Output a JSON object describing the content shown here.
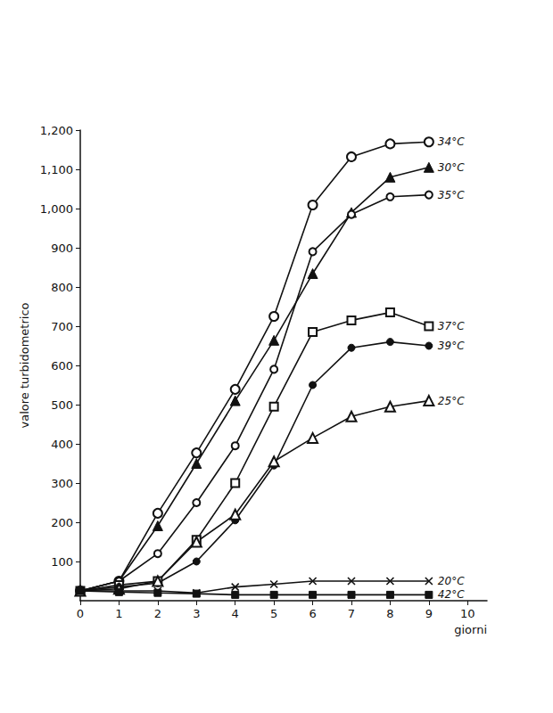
{
  "chart_data": {
    "type": "line",
    "x_label": "giorni",
    "y_label": "valore turbidometrico",
    "xlim": [
      0,
      10.5
    ],
    "xticks": [
      0,
      1,
      2,
      3,
      4,
      5,
      6,
      7,
      8,
      9,
      10
    ],
    "ylim": [
      0,
      1200
    ],
    "yticks": [
      100,
      200,
      300,
      400,
      500,
      600,
      700,
      800,
      900,
      1000,
      1100,
      1200
    ],
    "grid": false,
    "x": [
      0,
      1,
      2,
      3,
      4,
      5,
      6,
      7,
      8,
      9
    ],
    "series": [
      {
        "name": "34°C",
        "color": "#111111",
        "marker": "double_circle",
        "values": [
          25,
          50,
          223,
          377,
          539,
          725,
          1009,
          1132,
          1165,
          1170
        ]
      },
      {
        "name": "30°C",
        "color": "#111111",
        "marker": "filled_triangle",
        "values": [
          25,
          50,
          191,
          350,
          510,
          664,
          834,
          990,
          1080,
          1105
        ]
      },
      {
        "name": "35°C",
        "color": "#111111",
        "marker": "open_circle",
        "values": [
          25,
          50,
          120,
          250,
          395,
          590,
          890,
          985,
          1030,
          1035
        ]
      },
      {
        "name": "37°C",
        "color": "#111111",
        "marker": "dotted_square",
        "values": [
          25,
          40,
          50,
          155,
          300,
          495,
          685,
          715,
          735,
          700
        ]
      },
      {
        "name": "39°C",
        "color": "#111111",
        "marker": "filled_circle",
        "values": [
          25,
          35,
          45,
          100,
          205,
          345,
          550,
          645,
          660,
          650
        ]
      },
      {
        "name": "25°C",
        "color": "#111111",
        "marker": "open_triangle",
        "values": [
          25,
          30,
          50,
          150,
          220,
          355,
          415,
          470,
          495,
          510
        ]
      },
      {
        "name": "20°C",
        "color": "#111111",
        "marker": "x",
        "values": [
          25,
          25,
          25,
          20,
          35,
          42,
          50,
          50,
          50,
          50
        ]
      },
      {
        "name": "42°C",
        "color": "#111111",
        "marker": "filled_square",
        "values": [
          25,
          22,
          20,
          18,
          15,
          15,
          15,
          15,
          15,
          15
        ]
      }
    ]
  }
}
